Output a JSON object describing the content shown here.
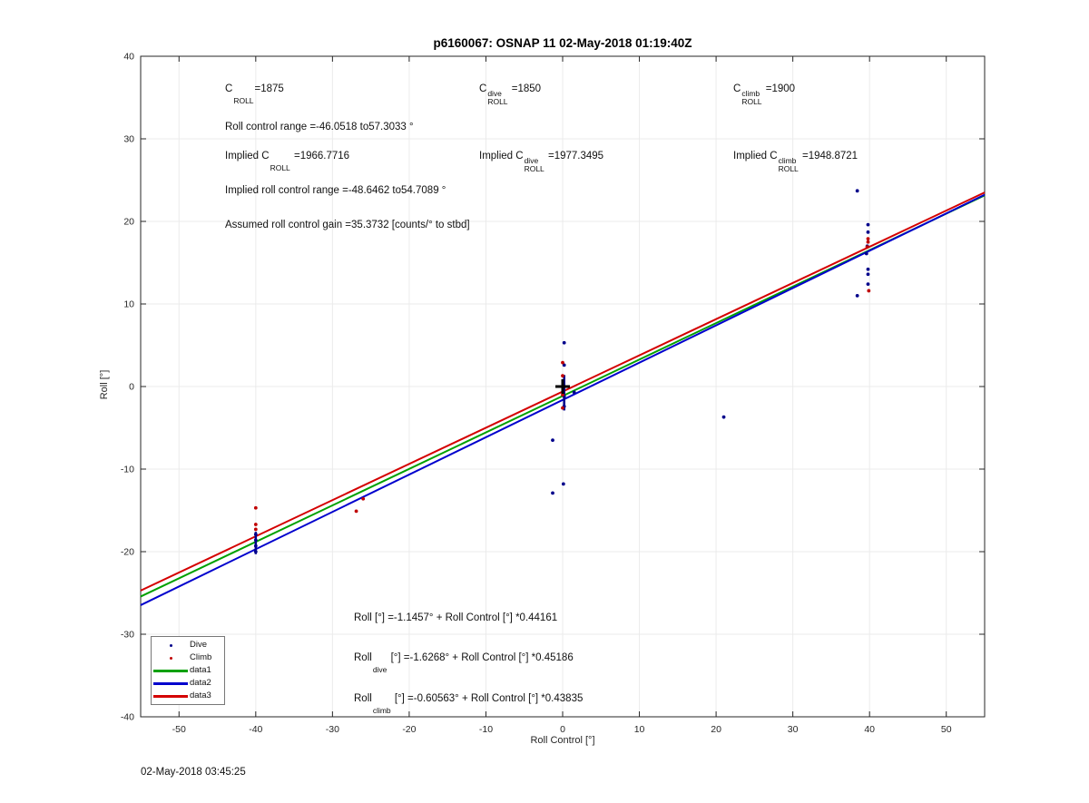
{
  "title": "p6160067: OSNAP 11 02-May-2018 01:19:40Z",
  "timestamp": "02-May-2018 03:45:25",
  "annotations": {
    "c_roll": {
      "base": "C",
      "sup": "",
      "sub": "ROLL",
      "value": "=1875"
    },
    "c_roll_dive": {
      "base": "C",
      "sup": "dive",
      "sub": "ROLL",
      "value": " =1850"
    },
    "c_roll_climb": {
      "base": "C",
      "sup": "climb",
      "sub": "ROLL",
      "value": " =1900"
    },
    "roll_control_range": "Roll control range =-46.0518 to57.3033 °",
    "implied_c_roll": {
      "base": "Implied C",
      "sup": "",
      "sub": "ROLL",
      "value": " =1966.7716"
    },
    "implied_c_roll_dive": {
      "base": "Implied C",
      "sup": "dive",
      "sub": "ROLL",
      "value": " =1977.3495"
    },
    "implied_c_roll_climb": {
      "base": "Implied C",
      "sup": "climb",
      "sub": "ROLL",
      "value": " =1948.8721"
    },
    "implied_roll_control_range": "Implied roll control range =-48.6462 to54.7089 °",
    "assumed_gain": "Assumed roll control gain =35.3732 [counts/° to stbd]"
  },
  "equations": {
    "all": {
      "base": "Roll",
      "sup": "",
      "sub": "",
      "value": " [°] =-1.1457° + Roll Control [°] *0.44161"
    },
    "dive": {
      "base": "Roll",
      "sup": "",
      "sub": "dive",
      "value": " [°] =-1.6268° + Roll Control [°] *0.45186"
    },
    "climb": {
      "base": "Roll",
      "sup": "",
      "sub": "climb",
      "value": " [°] =-0.60563° + Roll Control [°] *0.43835"
    }
  },
  "legend": {
    "items": [
      {
        "label": "Dive",
        "type": "point",
        "color": "#00008b"
      },
      {
        "label": "Climb",
        "type": "point",
        "color": "#c00000"
      },
      {
        "label": "data1",
        "type": "line",
        "color": "#00a000"
      },
      {
        "label": "data2",
        "type": "line",
        "color": "#0000cd"
      },
      {
        "label": "data3",
        "type": "line",
        "color": "#d40000"
      }
    ]
  },
  "chart_data": {
    "type": "scatter",
    "title": "p6160067: OSNAP 11 02-May-2018 01:19:40Z",
    "xlabel": "Roll Control [°]",
    "ylabel": "Roll [°]",
    "xlim": [
      -55,
      55
    ],
    "ylim": [
      -40,
      40
    ],
    "x_ticks": [
      -50,
      -40,
      -30,
      -20,
      -10,
      0,
      10,
      20,
      30,
      40,
      50
    ],
    "y_ticks": [
      -40,
      -30,
      -20,
      -10,
      0,
      10,
      20,
      30,
      40
    ],
    "grid": true,
    "grid_color": "#ebebeb",
    "axis_color": "#262626",
    "series": [
      {
        "name": "Dive",
        "marker": "dot",
        "color": "#00008b",
        "points": [
          [
            0.2,
            5.3
          ],
          [
            0.2,
            2.6
          ],
          [
            1.5,
            -0.7
          ],
          [
            0.2,
            -1.2
          ],
          [
            0.2,
            -2.4
          ],
          [
            -1.3,
            -6.5
          ],
          [
            0.1,
            -11.8
          ],
          [
            -1.3,
            -12.9
          ],
          [
            -40,
            -17.9
          ],
          [
            -40,
            -18.6
          ],
          [
            -40,
            -19.3
          ],
          [
            -40,
            -20.0
          ],
          [
            38.4,
            23.7
          ],
          [
            39.8,
            19.6
          ],
          [
            39.8,
            18.7
          ],
          [
            39.7,
            17.0
          ],
          [
            39.6,
            16.1
          ],
          [
            39.8,
            14.2
          ],
          [
            39.8,
            13.6
          ],
          [
            39.8,
            12.4
          ],
          [
            38.4,
            11.0
          ],
          [
            21.0,
            -3.7
          ]
        ]
      },
      {
        "name": "Climb",
        "marker": "dot",
        "color": "#c00000",
        "points": [
          [
            0,
            2.9
          ],
          [
            0,
            1.3
          ],
          [
            0,
            -1.0
          ],
          [
            0,
            -2.6
          ],
          [
            -40,
            -14.7
          ],
          [
            -40,
            -16.7
          ],
          [
            -40,
            -17.3
          ],
          [
            -26.0,
            -13.6
          ],
          [
            -26.9,
            -15.1
          ],
          [
            39.8,
            17.9
          ],
          [
            39.8,
            17.5
          ],
          [
            39.7,
            16.9
          ],
          [
            39.9,
            11.6
          ]
        ]
      }
    ],
    "lines": [
      {
        "name": "data1",
        "color": "#00a000",
        "intercept": -1.1457,
        "slope": 0.44161
      },
      {
        "name": "data2",
        "color": "#0000cd",
        "intercept": -1.6268,
        "slope": 0.45186
      },
      {
        "name": "data3",
        "color": "#d40000",
        "intercept": -0.60563,
        "slope": 0.43835
      }
    ],
    "segments": [
      {
        "x": 0.2,
        "y1": 1.4,
        "y2": -2.9,
        "color": "#00008b"
      },
      {
        "x": -40,
        "y1": -17.6,
        "y2": -20.3,
        "color": "#00008b"
      }
    ],
    "marker_plus": {
      "x": 0,
      "y": 0,
      "color": "#000000"
    }
  }
}
